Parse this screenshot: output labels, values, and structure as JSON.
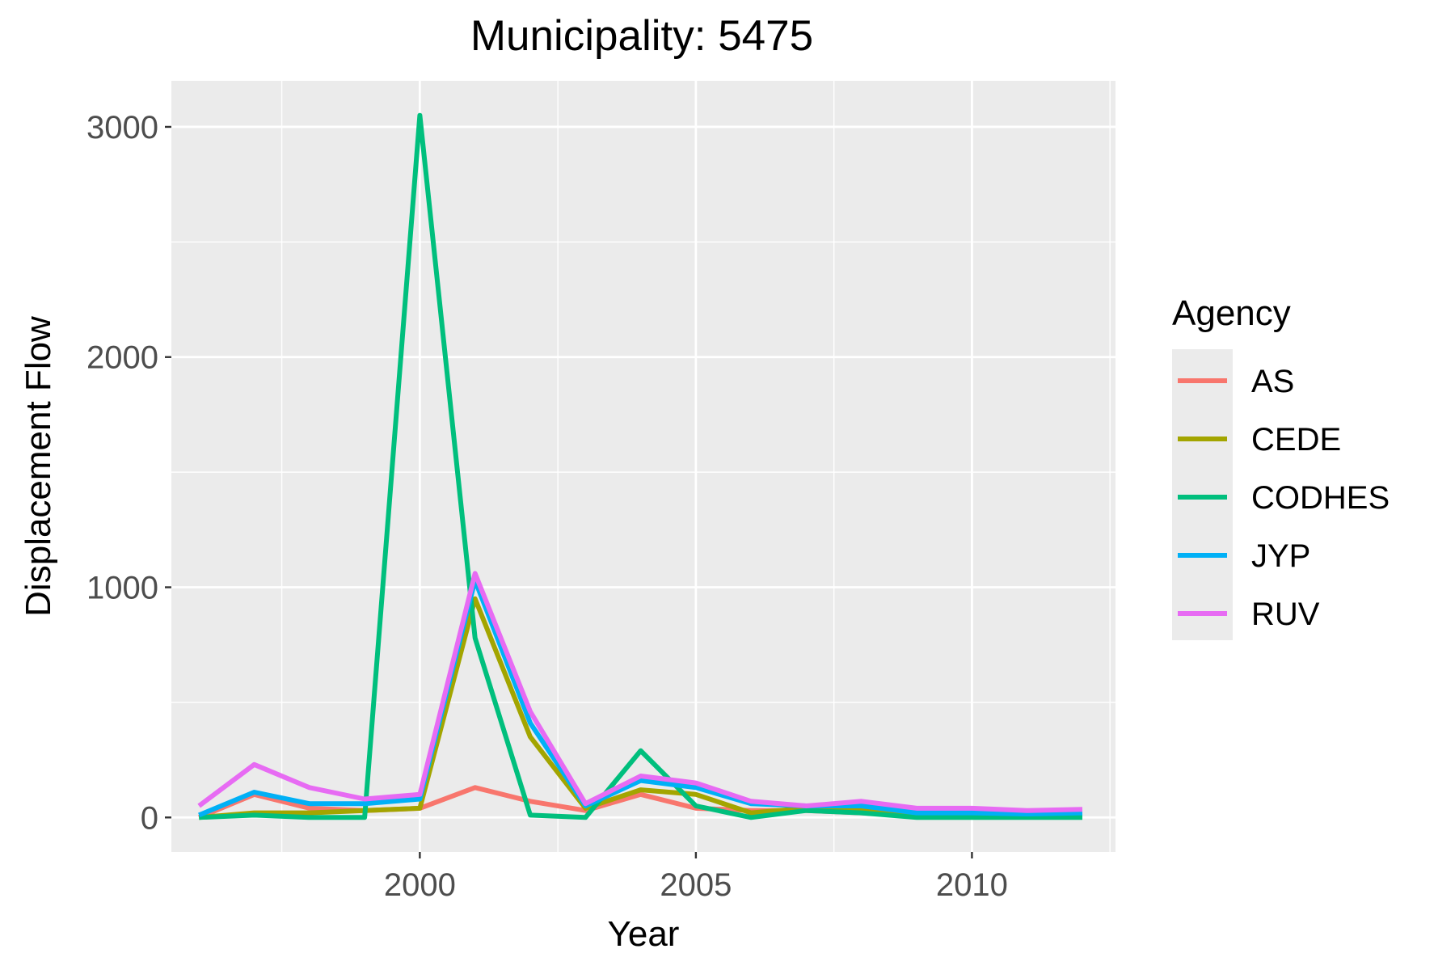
{
  "chart_data": {
    "type": "line",
    "title": "Municipality: 5475",
    "xlabel": "Year",
    "ylabel": "Displacement Flow",
    "xlim": [
      1995.5,
      2012.6
    ],
    "ylim": [
      -150,
      3200
    ],
    "x_ticks": [
      2000,
      2005,
      2010
    ],
    "y_ticks": [
      0,
      1000,
      2000,
      3000
    ],
    "grid": true,
    "legend": {
      "title": "Agency",
      "position": "right"
    },
    "x": [
      1996,
      1997,
      1998,
      1999,
      2000,
      2001,
      2002,
      2003,
      2004,
      2005,
      2006,
      2007,
      2008,
      2009,
      2010,
      2011,
      2012
    ],
    "series": [
      {
        "name": "AS",
        "color": "#F8766D",
        "values": [
          0,
          100,
          40,
          30,
          40,
          130,
          70,
          30,
          100,
          40,
          30,
          30,
          20,
          5,
          5,
          5,
          5
        ]
      },
      {
        "name": "CEDE",
        "color": "#A3A500",
        "values": [
          0,
          20,
          20,
          30,
          40,
          950,
          350,
          40,
          120,
          100,
          20,
          40,
          40,
          10,
          10,
          5,
          5
        ]
      },
      {
        "name": "CODHES",
        "color": "#00BF7D",
        "values": [
          0,
          10,
          0,
          0,
          3050,
          780,
          10,
          0,
          290,
          50,
          0,
          30,
          20,
          0,
          0,
          0,
          0
        ]
      },
      {
        "name": "JYP",
        "color": "#00B0F6",
        "values": [
          10,
          110,
          60,
          60,
          80,
          1030,
          410,
          50,
          160,
          130,
          60,
          50,
          50,
          20,
          20,
          15,
          20
        ]
      },
      {
        "name": "RUV",
        "color": "#E76BF3",
        "values": [
          50,
          230,
          130,
          80,
          100,
          1060,
          460,
          60,
          180,
          150,
          70,
          50,
          70,
          40,
          40,
          30,
          35
        ]
      }
    ]
  }
}
